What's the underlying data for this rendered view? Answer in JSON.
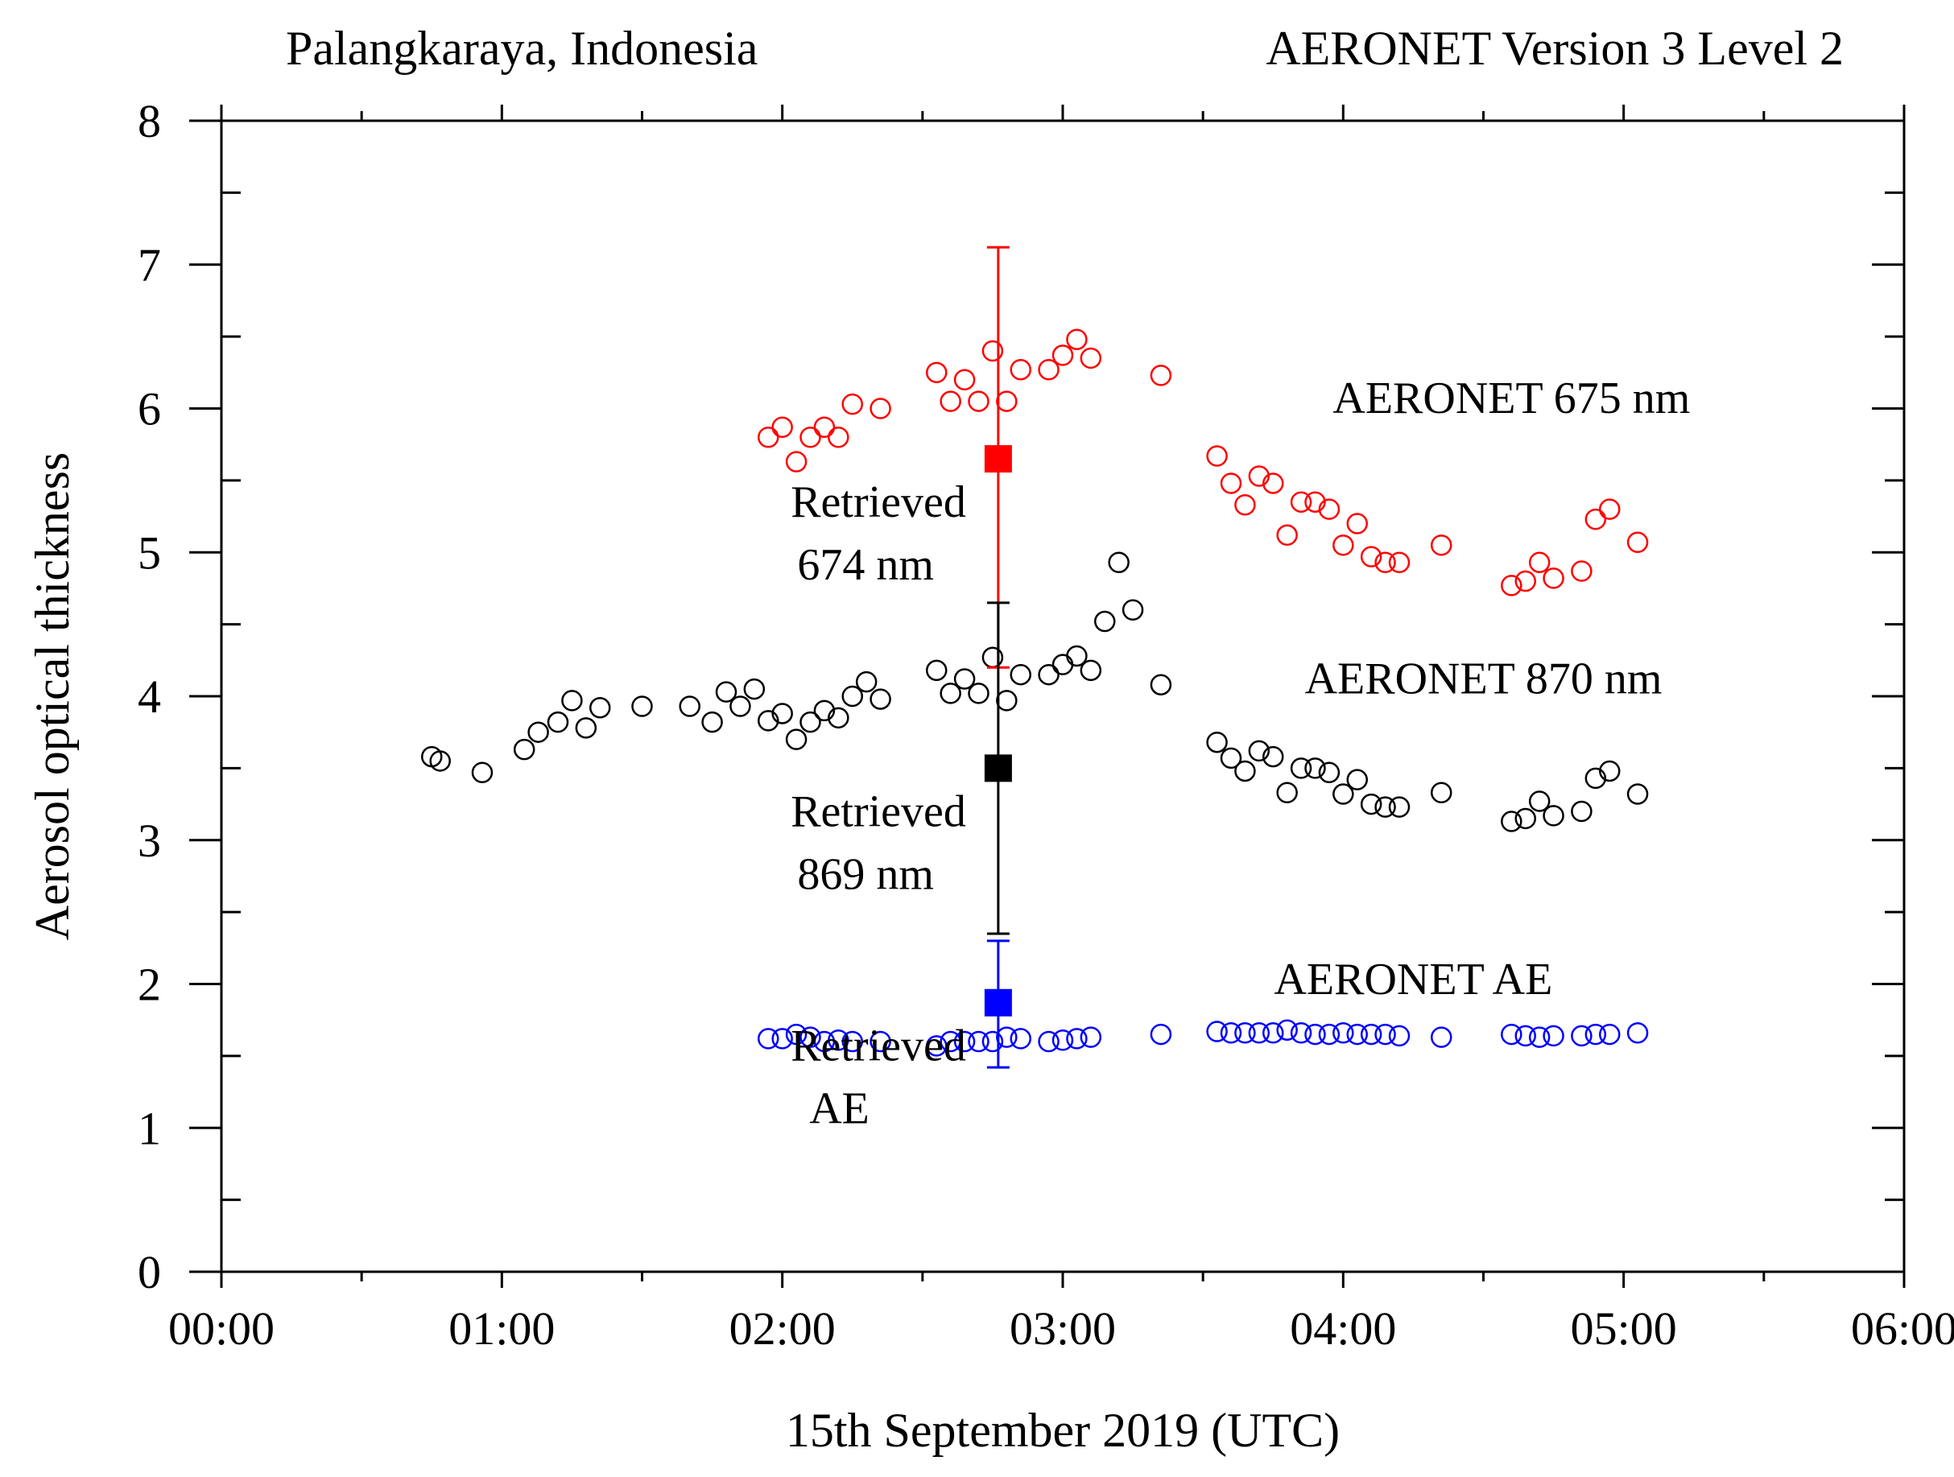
{
  "header": {
    "left": "Palangkaraya, Indonesia",
    "right": "AERONET  Version 3  Level 2"
  },
  "chart_data": {
    "type": "scatter",
    "xlabel": "15th September 2019  (UTC)",
    "ylabel": "Aerosol optical thickness",
    "xlim": [
      0,
      6
    ],
    "ylim": [
      0,
      8
    ],
    "x_units": "hours UTC",
    "x_major_ticks": [
      0,
      1,
      2,
      3,
      4,
      5,
      6
    ],
    "x_minor_step": 0.5,
    "x_tick_labels": [
      "00:00",
      "01:00",
      "02:00",
      "03:00",
      "04:00",
      "05:00",
      "06:00"
    ],
    "y_major_ticks": [
      0,
      1,
      2,
      3,
      4,
      5,
      6,
      7,
      8
    ],
    "y_tick_labels": [
      "0",
      "1",
      "2",
      "3",
      "4",
      "5",
      "6",
      "7",
      "8"
    ],
    "y_minor_step": 0.5,
    "series": [
      {
        "name": "AERONET 675 nm",
        "color": "#ff0000",
        "marker": "open-circle",
        "x": [
          1.95,
          2.0,
          2.05,
          2.1,
          2.15,
          2.2,
          2.25,
          2.35,
          2.55,
          2.6,
          2.65,
          2.7,
          2.75,
          2.8,
          2.85,
          2.95,
          3.0,
          3.05,
          3.1,
          3.35,
          3.55,
          3.6,
          3.65,
          3.7,
          3.75,
          3.8,
          3.85,
          3.9,
          3.95,
          4.0,
          4.05,
          4.1,
          4.15,
          4.2,
          4.35,
          4.6,
          4.65,
          4.7,
          4.75,
          4.85,
          4.9,
          4.95,
          5.05
        ],
        "y": [
          5.8,
          5.87,
          5.63,
          5.8,
          5.87,
          5.8,
          6.03,
          6.0,
          6.25,
          6.05,
          6.2,
          6.05,
          6.4,
          6.05,
          6.27,
          6.27,
          6.37,
          6.48,
          6.35,
          6.23,
          5.67,
          5.48,
          5.33,
          5.53,
          5.48,
          5.12,
          5.35,
          5.35,
          5.3,
          5.05,
          5.2,
          4.97,
          4.93,
          4.93,
          5.05,
          4.77,
          4.8,
          4.93,
          4.82,
          4.87,
          5.23,
          5.3,
          5.07
        ]
      },
      {
        "name": "AERONET 870 nm",
        "color": "#000000",
        "marker": "open-circle",
        "x": [
          0.75,
          0.78,
          0.93,
          1.08,
          1.13,
          1.2,
          1.25,
          1.3,
          1.35,
          1.5,
          1.67,
          1.75,
          1.8,
          1.85,
          1.9,
          1.95,
          2.0,
          2.05,
          2.1,
          2.15,
          2.2,
          2.25,
          2.3,
          2.35,
          2.55,
          2.6,
          2.65,
          2.7,
          2.75,
          2.8,
          2.85,
          2.95,
          3.0,
          3.05,
          3.1,
          3.15,
          3.2,
          3.25,
          3.35,
          3.55,
          3.6,
          3.65,
          3.7,
          3.75,
          3.8,
          3.85,
          3.9,
          3.95,
          4.0,
          4.05,
          4.1,
          4.15,
          4.2,
          4.35,
          4.6,
          4.65,
          4.7,
          4.75,
          4.85,
          4.9,
          4.95,
          5.05
        ],
        "y": [
          3.58,
          3.55,
          3.47,
          3.63,
          3.75,
          3.82,
          3.97,
          3.78,
          3.92,
          3.93,
          3.93,
          3.82,
          4.03,
          3.93,
          4.05,
          3.83,
          3.88,
          3.7,
          3.82,
          3.9,
          3.85,
          4.0,
          4.1,
          3.98,
          4.18,
          4.02,
          4.12,
          4.02,
          4.27,
          3.97,
          4.15,
          4.15,
          4.22,
          4.28,
          4.18,
          4.52,
          4.93,
          4.6,
          4.08,
          3.68,
          3.57,
          3.48,
          3.62,
          3.58,
          3.33,
          3.5,
          3.5,
          3.47,
          3.32,
          3.42,
          3.25,
          3.23,
          3.23,
          3.33,
          3.13,
          3.15,
          3.27,
          3.17,
          3.2,
          3.43,
          3.48,
          3.32
        ]
      },
      {
        "name": "AERONET AE",
        "color": "#0000ff",
        "marker": "open-circle",
        "x": [
          1.95,
          2.0,
          2.05,
          2.1,
          2.15,
          2.2,
          2.25,
          2.35,
          2.55,
          2.6,
          2.65,
          2.7,
          2.75,
          2.8,
          2.85,
          2.95,
          3.0,
          3.05,
          3.1,
          3.35,
          3.55,
          3.6,
          3.65,
          3.7,
          3.75,
          3.8,
          3.85,
          3.9,
          3.95,
          4.0,
          4.05,
          4.1,
          4.15,
          4.2,
          4.35,
          4.6,
          4.65,
          4.7,
          4.75,
          4.85,
          4.9,
          4.95,
          5.05
        ],
        "y": [
          1.62,
          1.62,
          1.65,
          1.63,
          1.6,
          1.61,
          1.6,
          1.6,
          1.57,
          1.6,
          1.6,
          1.6,
          1.6,
          1.63,
          1.62,
          1.6,
          1.61,
          1.62,
          1.63,
          1.65,
          1.67,
          1.66,
          1.66,
          1.66,
          1.66,
          1.68,
          1.66,
          1.65,
          1.65,
          1.66,
          1.65,
          1.65,
          1.65,
          1.64,
          1.63,
          1.65,
          1.64,
          1.63,
          1.64,
          1.64,
          1.65,
          1.65,
          1.66
        ]
      }
    ],
    "retrieved": [
      {
        "name": "Retrieved 674 nm",
        "label_lines": [
          "Retrieved",
          "674 nm"
        ],
        "color": "#ff0000",
        "x": 2.77,
        "y": 5.65,
        "err_low": 4.2,
        "err_high": 7.12
      },
      {
        "name": "Retrieved 869 nm",
        "label_lines": [
          "Retrieved",
          "869 nm"
        ],
        "color": "#000000",
        "x": 2.77,
        "y": 3.5,
        "err_low": 2.35,
        "err_high": 4.65
      },
      {
        "name": "Retrieved AE",
        "label_lines": [
          "Retrieved",
          "AE"
        ],
        "color": "#0000ff",
        "x": 2.77,
        "y": 1.87,
        "err_low": 1.42,
        "err_high": 2.3
      }
    ],
    "annotations": [
      {
        "text": "AERONET 675 nm",
        "x": 4.6,
        "y": 5.97
      },
      {
        "text": "AERONET 870 nm",
        "x": 4.5,
        "y": 4.02
      },
      {
        "text": "AERONET AE",
        "x": 4.25,
        "y": 1.93
      }
    ]
  }
}
